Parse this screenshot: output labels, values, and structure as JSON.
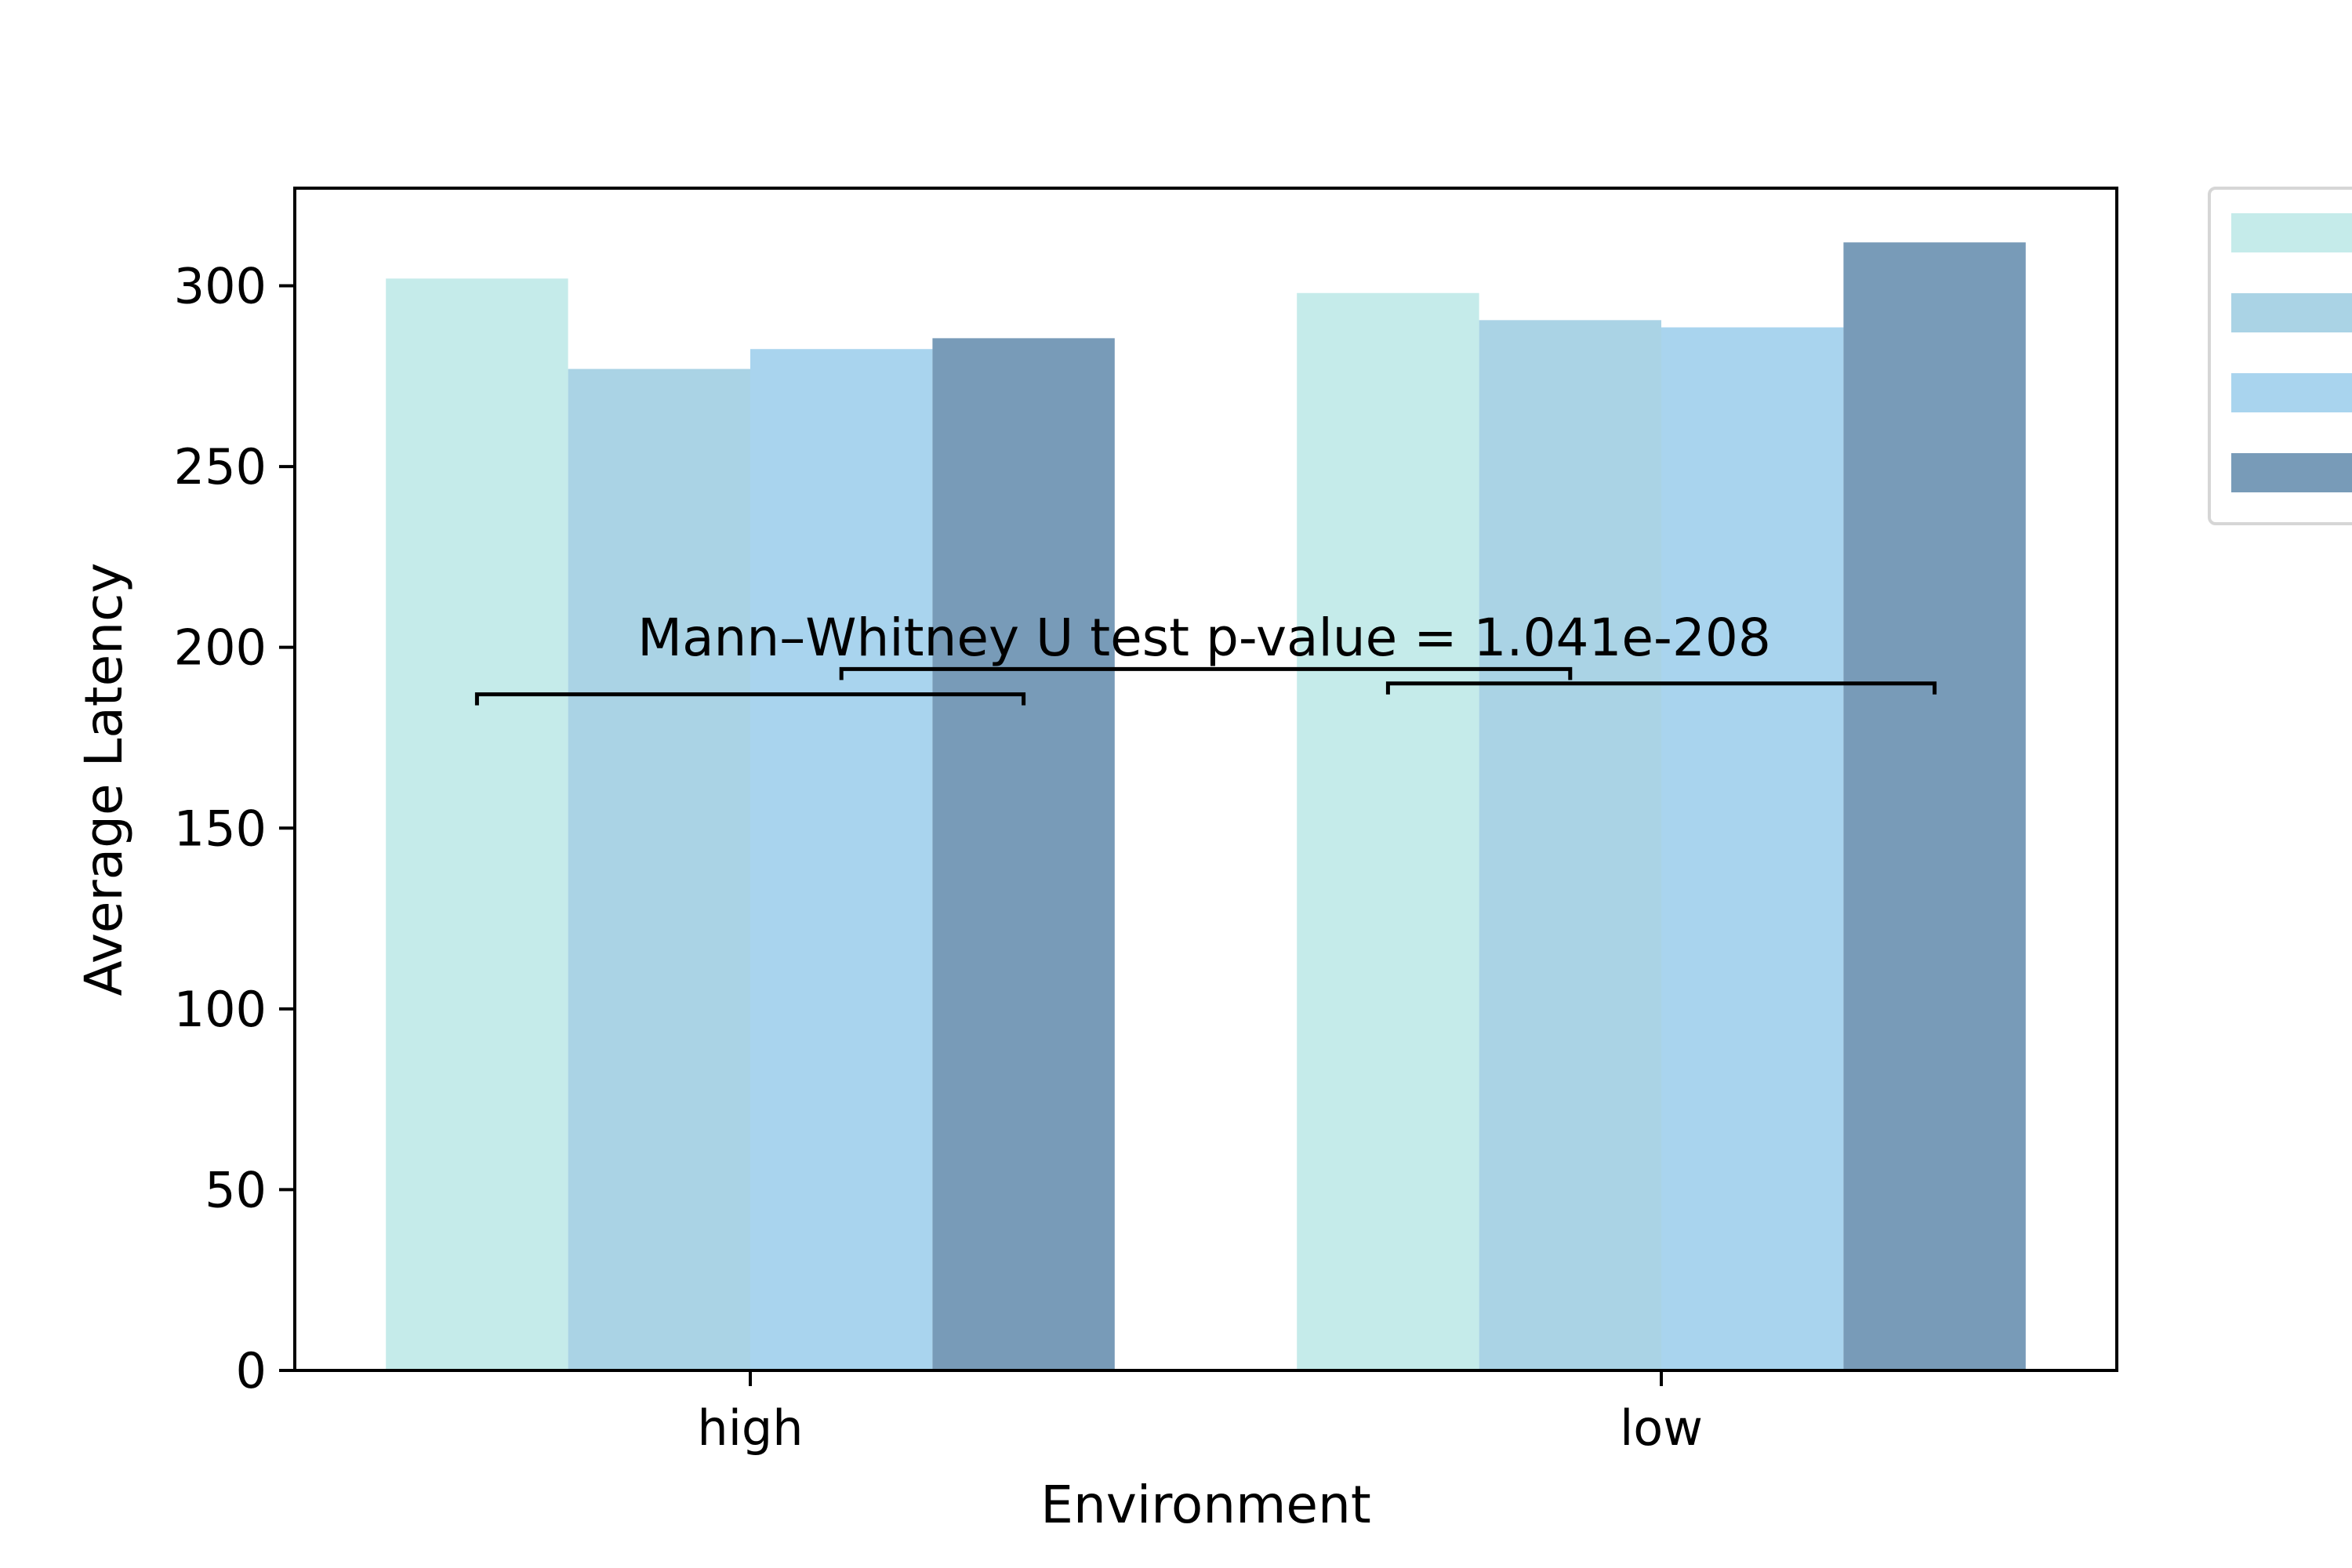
{
  "chart_data": {
    "type": "bar",
    "categories": [
      "high",
      "low"
    ],
    "series": [
      {
        "color": "#c5ebea",
        "values": [
          302,
          298
        ]
      },
      {
        "color": "#aad3e5",
        "values": [
          277,
          290.5
        ]
      },
      {
        "color": "#a9d4ee",
        "values": [
          282.5,
          288.5
        ]
      },
      {
        "color": "#789bb8",
        "values": [
          285.5,
          312
        ]
      }
    ],
    "xlabel": "Environment",
    "ylabel": "Average Latency",
    "ylim": [
      0,
      327
    ],
    "yticks": [
      0,
      50,
      100,
      150,
      200,
      250,
      300
    ],
    "grid": false,
    "legend": {
      "placement": "outside-top-right"
    },
    "annotation": {
      "text": "Mann–Whitney U test p-value = 1.041e-208",
      "brackets": [
        {
          "from": [
            "high",
            1
          ],
          "to": [
            "high",
            4
          ],
          "y": 187
        },
        {
          "from": [
            "high",
            3
          ],
          "to": [
            "low",
            2
          ],
          "y": 194
        },
        {
          "from": [
            "low",
            1
          ],
          "to": [
            "low",
            4
          ],
          "y": 190
        }
      ]
    }
  }
}
